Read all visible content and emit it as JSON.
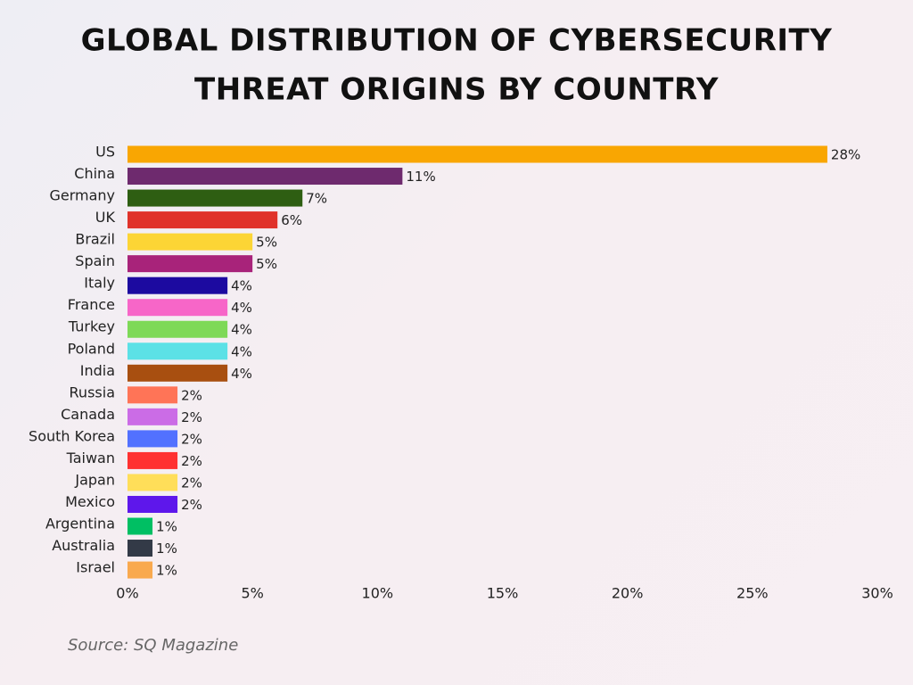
{
  "chart_data": {
    "type": "bar",
    "orientation": "horizontal",
    "title": [
      "GLOBAL DISTRIBUTION OF CYBERSECURITY",
      "THREAT ORIGINS BY COUNTRY"
    ],
    "categories": [
      "US",
      "China",
      "Germany",
      "UK",
      "Brazil",
      "Spain",
      "Italy",
      "France",
      "Turkey",
      "Poland",
      "India",
      "Russia",
      "Canada",
      "South Korea",
      "Taiwan",
      "Japan",
      "Mexico",
      "Argentina",
      "Australia",
      "Israel"
    ],
    "values": [
      28,
      11,
      7,
      6,
      5,
      5,
      4,
      4,
      4,
      4,
      4,
      2,
      2,
      2,
      2,
      2,
      2,
      1,
      1,
      1
    ],
    "value_labels": [
      "28%",
      "11%",
      "7%",
      "6%",
      "5%",
      "5%",
      "4%",
      "4%",
      "4%",
      "4%",
      "4%",
      "2%",
      "2%",
      "2%",
      "2%",
      "2%",
      "2%",
      "1%",
      "1%",
      "1%"
    ],
    "colors": [
      "#f9a602",
      "#6e2a6e",
      "#2e5e12",
      "#e0322a",
      "#fcd535",
      "#a8237a",
      "#1c0aa0",
      "#f766c8",
      "#7ed957",
      "#5ce1e6",
      "#a84f10",
      "#ff7457",
      "#cb6ce6",
      "#5271ff",
      "#ff3131",
      "#ffde59",
      "#5e17eb",
      "#00bf63",
      "#333a47",
      "#f9a94e"
    ],
    "xlim": [
      0,
      30
    ],
    "xticks": [
      {
        "value": 0,
        "label": "0%"
      },
      {
        "value": 5,
        "label": "5%"
      },
      {
        "value": 10,
        "label": "10%"
      },
      {
        "value": 15,
        "label": "15%"
      },
      {
        "value": 20,
        "label": "20%"
      },
      {
        "value": 25,
        "label": "25%"
      },
      {
        "value": 30,
        "label": "30%"
      }
    ],
    "source": "Source: SQ Magazine"
  }
}
